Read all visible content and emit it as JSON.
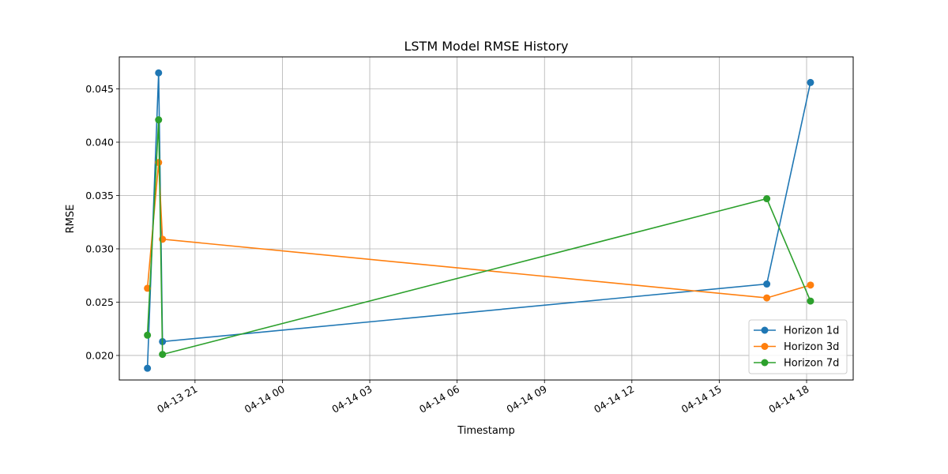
{
  "chart_data": {
    "type": "line",
    "title": "LSTM Model RMSE History",
    "xlabel": "Timestamp",
    "ylabel": "RMSE",
    "x_type": "datetime",
    "xlim": [
      "2026-04-13T18:24",
      "2026-04-14T19:36"
    ],
    "ylim": [
      0.0177,
      0.048
    ],
    "x_ticks": [
      {
        "value": "2026-04-13T21:00",
        "label": "04-13 21"
      },
      {
        "value": "2026-04-14T00:00",
        "label": "04-14 00"
      },
      {
        "value": "2026-04-14T03:00",
        "label": "04-14 03"
      },
      {
        "value": "2026-04-14T06:00",
        "label": "04-14 06"
      },
      {
        "value": "2026-04-14T09:00",
        "label": "04-14 09"
      },
      {
        "value": "2026-04-14T12:00",
        "label": "04-14 12"
      },
      {
        "value": "2026-04-14T15:00",
        "label": "04-14 15"
      },
      {
        "value": "2026-04-14T18:00",
        "label": "04-14 18"
      }
    ],
    "y_ticks": [
      {
        "value": 0.02,
        "label": "0.020"
      },
      {
        "value": 0.025,
        "label": "0.025"
      },
      {
        "value": 0.03,
        "label": "0.030"
      },
      {
        "value": 0.035,
        "label": "0.035"
      },
      {
        "value": 0.04,
        "label": "0.040"
      },
      {
        "value": 0.045,
        "label": "0.045"
      }
    ],
    "grid": true,
    "legend_position": "lower-right",
    "series": [
      {
        "name": "Horizon 1d",
        "color": "#1f77b4",
        "points": [
          {
            "x": "2026-04-13T19:22",
            "y": 0.0188
          },
          {
            "x": "2026-04-13T19:45",
            "y": 0.0465
          },
          {
            "x": "2026-04-13T19:53",
            "y": 0.0213
          },
          {
            "x": "2026-04-14T16:38",
            "y": 0.0267
          },
          {
            "x": "2026-04-14T18:08",
            "y": 0.0456
          }
        ]
      },
      {
        "name": "Horizon 3d",
        "color": "#ff7f0e",
        "points": [
          {
            "x": "2026-04-13T19:22",
            "y": 0.0263
          },
          {
            "x": "2026-04-13T19:45",
            "y": 0.0381
          },
          {
            "x": "2026-04-13T19:53",
            "y": 0.0309
          },
          {
            "x": "2026-04-14T16:38",
            "y": 0.0254
          },
          {
            "x": "2026-04-14T18:08",
            "y": 0.0266
          }
        ]
      },
      {
        "name": "Horizon 7d",
        "color": "#2ca02c",
        "points": [
          {
            "x": "2026-04-13T19:22",
            "y": 0.0219
          },
          {
            "x": "2026-04-13T19:45",
            "y": 0.0421
          },
          {
            "x": "2026-04-13T19:53",
            "y": 0.0201
          },
          {
            "x": "2026-04-14T16:38",
            "y": 0.0347
          },
          {
            "x": "2026-04-14T18:08",
            "y": 0.0251
          }
        ]
      }
    ]
  }
}
